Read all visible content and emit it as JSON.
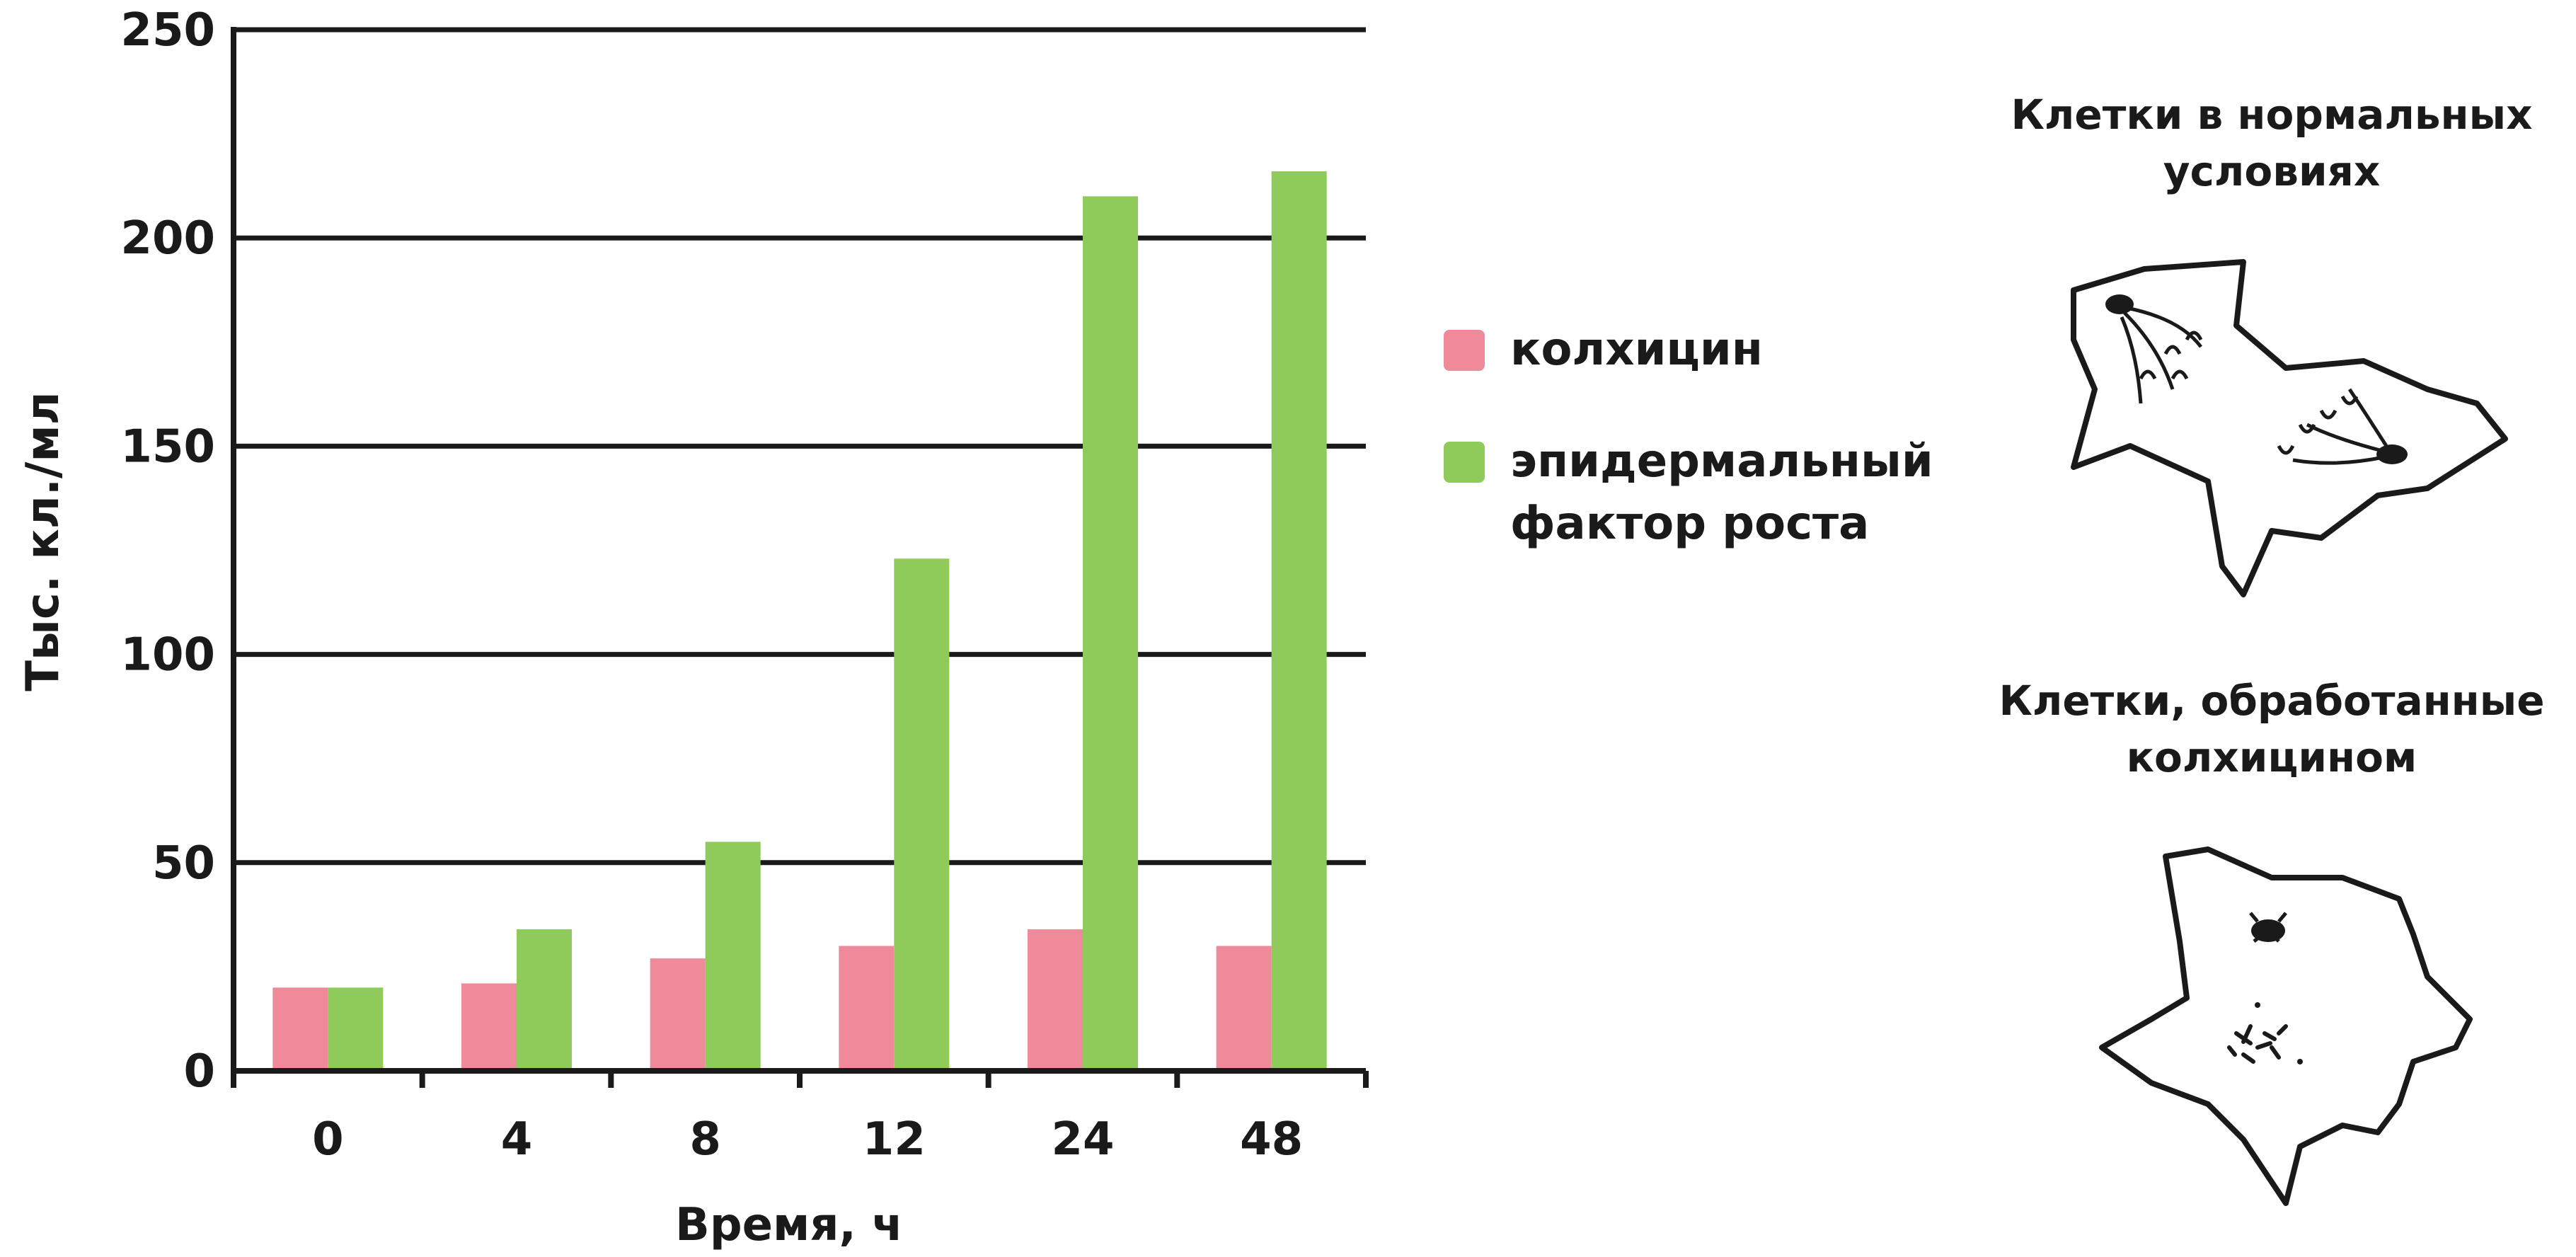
{
  "chart_data": {
    "type": "bar",
    "categories": [
      "0",
      "4",
      "8",
      "12",
      "24",
      "48"
    ],
    "series": [
      {
        "name": "колхицин",
        "values": [
          20,
          21,
          27,
          30,
          34,
          30
        ],
        "color": "#ef8a9b"
      },
      {
        "name": "эпидермальный фактор роста",
        "values": [
          20,
          34,
          55,
          123,
          210,
          216
        ],
        "color": "#8ecb5b"
      }
    ],
    "xlabel": "Время, ч",
    "ylabel": "Тыс. кл./мл",
    "ylim": [
      0,
      250
    ],
    "yticks": [
      0,
      50,
      100,
      150,
      200,
      250
    ],
    "grid": true,
    "legend_position": "right"
  },
  "legend": {
    "items": [
      {
        "label": "колхицин",
        "color": "#ef8a9b"
      },
      {
        "label": "эпидермальный фактор роста",
        "color": "#8ecb5b"
      }
    ]
  },
  "panels": {
    "normal_title": "Клетки в нормальных условиях",
    "treated_title": "Клетки, обработанные колхицином"
  }
}
